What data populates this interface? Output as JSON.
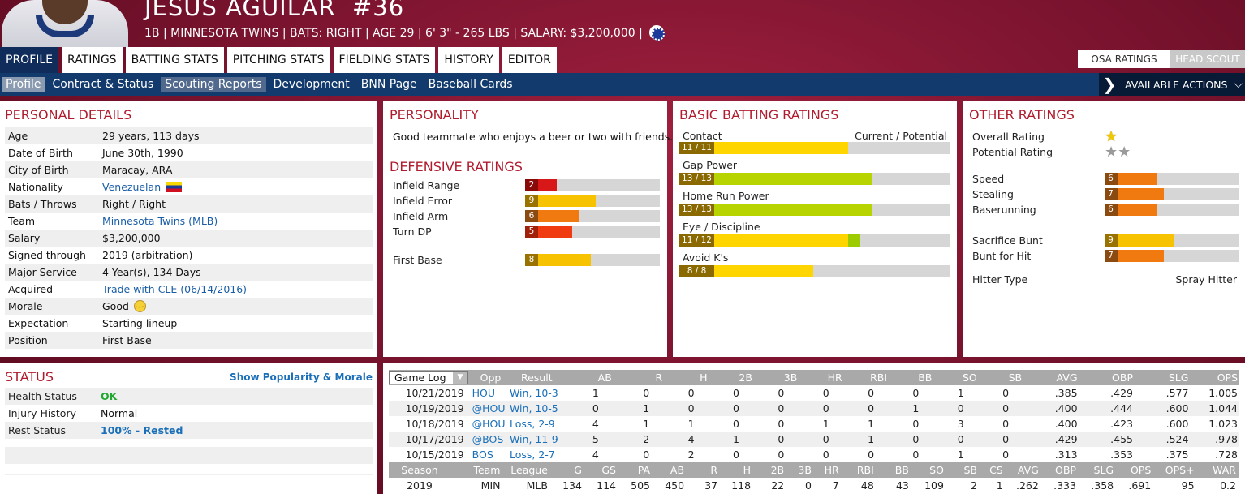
{
  "player": {
    "name": "JESUS AGUILAR",
    "number": "#36",
    "info": "1B | MINNESOTA TWINS  |  BATS: RIGHT  |  AGE 29  |  6' 3\" - 265 LBS  |  SALARY: $3,200,000  |"
  },
  "tabs": [
    "PROFILE",
    "RATINGS",
    "BATTING STATS",
    "PITCHING STATS",
    "FIELDING STATS",
    "HISTORY",
    "EDITOR"
  ],
  "rating_toggle": {
    "osa": "OSA RATINGS",
    "scout": "HEAD SCOUT"
  },
  "subnav": [
    "Profile",
    "Contract & Status",
    "Scouting Reports",
    "Development",
    "BNN Page",
    "Baseball Cards"
  ],
  "actions_label": "AVAILABLE ACTIONS",
  "personal": {
    "title": "PERSONAL DETAILS",
    "rows": [
      {
        "k": "Age",
        "v": "29 years, 113 days"
      },
      {
        "k": "Date of Birth",
        "v": "June 30th, 1990"
      },
      {
        "k": "City of Birth",
        "v": "Maracay, ARA"
      },
      {
        "k": "Nationality",
        "v": "Venezuelan"
      },
      {
        "k": "Bats / Throws",
        "v": "Right / Right"
      },
      {
        "k": "Team",
        "v": "Minnesota Twins (MLB)"
      },
      {
        "k": "Salary",
        "v": "$3,200,000"
      },
      {
        "k": "Signed through",
        "v": "2019 (arbitration)"
      },
      {
        "k": "Major Service",
        "v": "4 Year(s), 134 Days"
      },
      {
        "k": "Acquired",
        "v": "Trade with CLE (06/14/2016)"
      },
      {
        "k": "Morale",
        "v": "Good"
      },
      {
        "k": "Expectation",
        "v": "Starting lineup"
      },
      {
        "k": "Position",
        "v": "First Base"
      }
    ]
  },
  "personality": {
    "title": "PERSONALITY",
    "text": "Good teammate who enjoys a beer or two with friends."
  },
  "defensive": {
    "title": "DEFENSIVE RATINGS",
    "rows": [
      {
        "label": "Infield Range",
        "value": "2",
        "pct": 0.15,
        "color": "#d81818",
        "numcolor": "#8a0a0a"
      },
      {
        "label": "Infield Error",
        "value": "9",
        "pct": 0.47,
        "color": "#f7c300",
        "numcolor": "#9a7200"
      },
      {
        "label": "Infield Arm",
        "value": "6",
        "pct": 0.33,
        "color": "#f07a10",
        "numcolor": "#8a4a10"
      },
      {
        "label": "Turn DP",
        "value": "5",
        "pct": 0.28,
        "color": "#f03a10",
        "numcolor": "#a02008"
      },
      {
        "label": "First Base",
        "value": "8",
        "pct": 0.43,
        "color": "#f7c300",
        "numcolor": "#9a7200"
      }
    ]
  },
  "batting": {
    "title": "BASIC BATTING RATINGS",
    "col_left": "Contact",
    "col_right": "Current / Potential",
    "rows": [
      {
        "label": "",
        "value": "11 / 11",
        "pct": 0.57,
        "pot": 0.57,
        "color": "#ffd500"
      },
      {
        "label": "Gap Power",
        "value": "13 / 13",
        "pct": 0.67,
        "pot": 0.67,
        "color": "#b8d400"
      },
      {
        "label": "Home Run Power",
        "value": "13 / 13",
        "pct": 0.67,
        "pot": 0.67,
        "color": "#b8d400"
      },
      {
        "label": "Eye / Discipline",
        "value": "11 / 12",
        "pct": 0.57,
        "pot": 0.62,
        "color": "#ffd500"
      },
      {
        "label": "Avoid K's",
        "value": "8 / 8",
        "pct": 0.42,
        "pot": 0.42,
        "color": "#ffd500"
      }
    ]
  },
  "other": {
    "title": "OTHER RATINGS",
    "overall_label": "Overall Rating",
    "overall_stars": "1",
    "potential_label": "Potential Rating",
    "potential_stars": "2",
    "rows": [
      {
        "label": "Speed",
        "value": "6",
        "pct": 0.33,
        "color": "#f07a10"
      },
      {
        "label": "Stealing",
        "value": "7",
        "pct": 0.38,
        "color": "#f07a10"
      },
      {
        "label": "Baserunning",
        "value": "6",
        "pct": 0.33,
        "color": "#f07a10"
      },
      {
        "label": "Sacrifice Bunt",
        "value": "9",
        "pct": 0.47,
        "color": "#f7c300"
      },
      {
        "label": "Bunt for Hit",
        "value": "7",
        "pct": 0.38,
        "color": "#f07a10"
      }
    ],
    "hitter_type_label": "Hitter Type",
    "hitter_type": "Spray Hitter"
  },
  "status": {
    "title": "STATUS",
    "link": "Show Popularity & Morale",
    "rows": [
      {
        "k": "Health Status",
        "v": "OK",
        "color": "#22a830"
      },
      {
        "k": "Injury History",
        "v": "Normal",
        "color": "#111111"
      },
      {
        "k": "Rest Status",
        "v": "100% - Rested",
        "color": "#1a6fb8"
      }
    ]
  },
  "gamelog": {
    "select": "Game Log",
    "headers": [
      "Opp",
      "Result",
      "AB",
      "R",
      "H",
      "2B",
      "3B",
      "HR",
      "RBI",
      "BB",
      "SO",
      "SB",
      "AVG",
      "OBP",
      "SLG",
      "OPS"
    ],
    "rows": [
      {
        "date": "10/21/2019",
        "opp": "HOU",
        "result": "Win, 10-3",
        "stats": [
          "1",
          "0",
          "0",
          "0",
          "0",
          "0",
          "0",
          "0",
          "1",
          "0",
          ".385",
          ".429",
          ".577",
          "1.005"
        ]
      },
      {
        "date": "10/19/2019",
        "opp": "@HOU",
        "result": "Win, 10-5",
        "stats": [
          "0",
          "1",
          "0",
          "0",
          "0",
          "0",
          "0",
          "1",
          "0",
          "0",
          ".400",
          ".444",
          ".600",
          "1.044"
        ]
      },
      {
        "date": "10/18/2019",
        "opp": "@HOU",
        "result": "Loss, 2-9",
        "stats": [
          "4",
          "1",
          "1",
          "0",
          "0",
          "1",
          "1",
          "0",
          "3",
          "0",
          ".400",
          ".423",
          ".600",
          "1.023"
        ]
      },
      {
        "date": "10/17/2019",
        "opp": "@BOS",
        "result": "Win, 11-9",
        "stats": [
          "5",
          "2",
          "4",
          "1",
          "0",
          "0",
          "1",
          "0",
          "0",
          "0",
          ".429",
          ".455",
          ".524",
          ".978"
        ]
      },
      {
        "date": "10/15/2019",
        "opp": "BOS",
        "result": "Loss, 2-7",
        "stats": [
          "4",
          "0",
          "2",
          "0",
          "0",
          "0",
          "0",
          "0",
          "1",
          "0",
          ".313",
          ".353",
          ".375",
          ".728"
        ]
      }
    ]
  },
  "season": {
    "headers": [
      "Season",
      "Team",
      "League",
      "G",
      "GS",
      "PA",
      "AB",
      "R",
      "H",
      "2B",
      "3B",
      "HR",
      "RBI",
      "BB",
      "SO",
      "SB",
      "CS",
      "AVG",
      "OBP",
      "SLG",
      "OPS",
      "OPS+",
      "WAR"
    ],
    "rows": [
      [
        "2019",
        "MIN",
        "MLB",
        "134",
        "114",
        "505",
        "450",
        "37",
        "118",
        "22",
        "0",
        "7",
        "48",
        "43",
        "109",
        "2",
        "1",
        ".262",
        ".333",
        ".358",
        ".691",
        "95",
        "0.2"
      ]
    ]
  }
}
